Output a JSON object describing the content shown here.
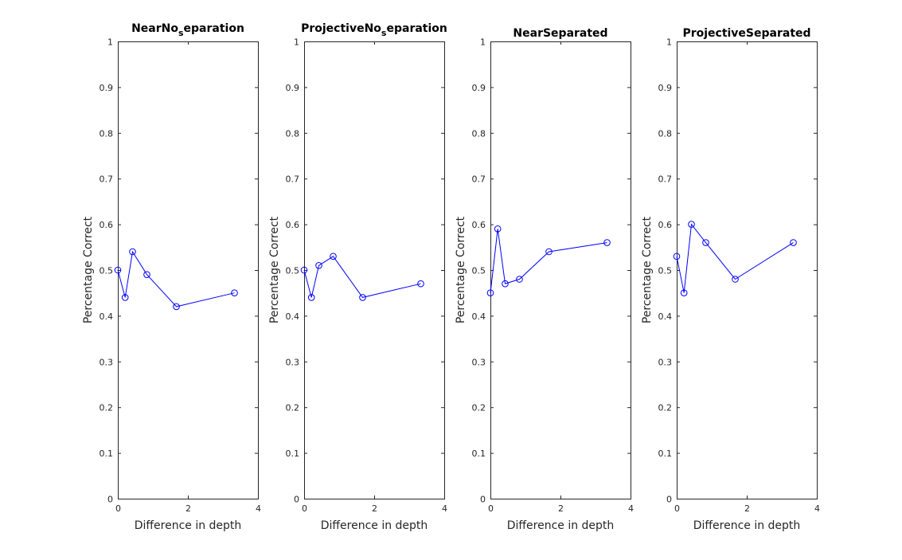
{
  "chart_data": [
    {
      "type": "line",
      "title_main": "NearNo",
      "title_sub": "s",
      "title_rest": "eparation",
      "xlabel": "Difference in depth",
      "ylabel": "Percentage Correct",
      "xlim": [
        0,
        4
      ],
      "ylim": [
        0,
        1
      ],
      "xticks": [
        "0",
        "2",
        "4"
      ],
      "yticks": [
        "0",
        "0.1",
        "0.2",
        "0.3",
        "0.4",
        "0.5",
        "0.6",
        "0.7",
        "0.8",
        "0.9",
        "1"
      ],
      "series": [
        {
          "x": [
            0,
            0.21,
            0.42,
            0.83,
            1.67,
            3.33
          ],
          "y": [
            0.5,
            0.44,
            0.54,
            0.49,
            0.42,
            0.45
          ]
        }
      ]
    },
    {
      "type": "line",
      "title_main": "ProjectiveNo",
      "title_sub": "s",
      "title_rest": "eparation",
      "xlabel": "Difference in depth",
      "ylabel": "Percentage Correct",
      "xlim": [
        0,
        4
      ],
      "ylim": [
        0,
        1
      ],
      "xticks": [
        "0",
        "2",
        "4"
      ],
      "yticks": [
        "0",
        "0.1",
        "0.2",
        "0.3",
        "0.4",
        "0.5",
        "0.6",
        "0.7",
        "0.8",
        "0.9",
        "1"
      ],
      "series": [
        {
          "x": [
            0,
            0.21,
            0.42,
            0.83,
            1.67,
            3.33
          ],
          "y": [
            0.5,
            0.44,
            0.51,
            0.53,
            0.44,
            0.47
          ]
        }
      ]
    },
    {
      "type": "line",
      "title_main": "NearSeparated",
      "title_sub": "",
      "title_rest": "",
      "xlabel": "Difference in depth",
      "ylabel": "Percentage Correct",
      "xlim": [
        0,
        4
      ],
      "ylim": [
        0,
        1
      ],
      "xticks": [
        "0",
        "2",
        "4"
      ],
      "yticks": [
        "0",
        "0.1",
        "0.2",
        "0.3",
        "0.4",
        "0.5",
        "0.6",
        "0.7",
        "0.8",
        "0.9",
        "1"
      ],
      "series": [
        {
          "x": [
            0,
            0.21,
            0.42,
            0.83,
            1.67,
            3.33
          ],
          "y": [
            0.45,
            0.59,
            0.47,
            0.48,
            0.54,
            0.56
          ]
        }
      ]
    },
    {
      "type": "line",
      "title_main": "ProjectiveSeparated",
      "title_sub": "",
      "title_rest": "",
      "xlabel": "Difference in depth",
      "ylabel": "Percentage Correct",
      "xlim": [
        0,
        4
      ],
      "ylim": [
        0,
        1
      ],
      "xticks": [
        "0",
        "2",
        "4"
      ],
      "yticks": [
        "0",
        "0.1",
        "0.2",
        "0.3",
        "0.4",
        "0.5",
        "0.6",
        "0.7",
        "0.8",
        "0.9",
        "1"
      ],
      "series": [
        {
          "x": [
            0,
            0.21,
            0.42,
            0.83,
            1.67,
            3.33
          ],
          "y": [
            0.53,
            0.45,
            0.6,
            0.56,
            0.48,
            0.56
          ]
        }
      ]
    }
  ],
  "colors": {
    "series": "#0000ff",
    "axes": "#262626",
    "background": "#ffffff"
  },
  "grid": false
}
